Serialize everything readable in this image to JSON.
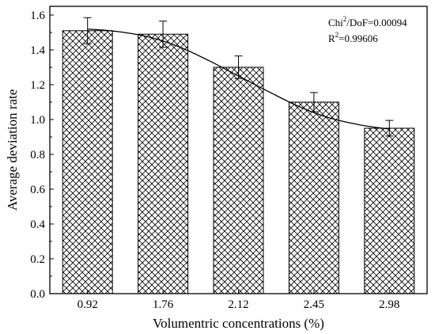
{
  "chart_data": {
    "type": "bar",
    "title": "",
    "xlabel": "Volumentric concentrations (%)",
    "ylabel": "Average deviation rate",
    "categories": [
      "0.92",
      "1.76",
      "2.12",
      "2.45",
      "2.98"
    ],
    "values": [
      1.51,
      1.49,
      1.3,
      1.1,
      0.95
    ],
    "error": [
      0.075,
      0.075,
      0.065,
      0.055,
      0.045
    ],
    "ylim": [
      0.0,
      1.65
    ],
    "yticks": [
      "0.0",
      "0.2",
      "0.4",
      "0.6",
      "0.8",
      "1.0",
      "1.2",
      "1.4",
      "1.6"
    ],
    "bar_pattern": "crosshatch",
    "grid": false,
    "fit_curve": {
      "type": "sigmoid",
      "y": [
        1.52,
        1.505,
        1.475,
        1.42,
        1.34,
        1.25,
        1.16,
        1.075,
        1.01,
        0.97,
        0.945
      ]
    },
    "annotations": {
      "chi_main": "Chi",
      "chi_sup": "2",
      "chi_rest": "/DoF=0.00094",
      "r_main": "R",
      "r_sup": "2",
      "r_rest": "=0.99606"
    }
  }
}
